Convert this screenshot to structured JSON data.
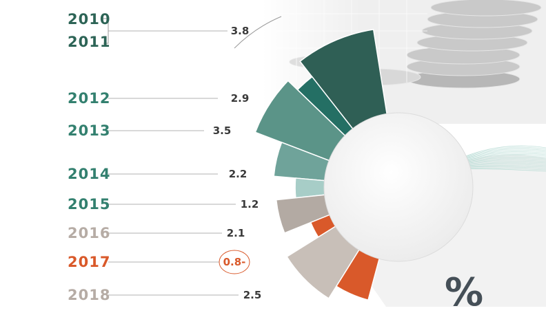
{
  "chart_data": {
    "type": "bar",
    "title": "",
    "xlabel": "",
    "ylabel": "",
    "categories": [
      "2010 2011",
      "2012",
      "2013",
      "2014",
      "2015",
      "2016",
      "2017",
      "2018"
    ],
    "category_labels": [
      [
        "2010",
        "2011"
      ],
      [
        "2012"
      ],
      [
        "2013"
      ],
      [
        "2014"
      ],
      [
        "2015"
      ],
      [
        "2016"
      ],
      [
        "2017"
      ],
      [
        "2018"
      ]
    ],
    "values": [
      3.8,
      2.9,
      3.5,
      2.2,
      1.2,
      2.1,
      -0.8,
      2.5
    ],
    "value_labels": [
      "3.8",
      "2.9",
      "3.5",
      "2.2",
      "1.2",
      "2.1",
      "0.8-",
      "2.5"
    ],
    "bar_colors": [
      "#2f5f55",
      "#246f64",
      "#5b9488",
      "#6fa39a",
      "#a7cdc7",
      "#b3aaa3",
      "#d9592a",
      "#c8bfb8"
    ],
    "label_colors": [
      "#2d6456",
      "#33806f",
      "#33806f",
      "#33806f",
      "#33806f",
      "#b6aca5",
      "#d9592a",
      "#b6aca5"
    ],
    "extra_segment_color": "#d9592a",
    "unit_symbol": "%",
    "grid": false
  },
  "colors": {
    "accent_teal": "#2f5f55",
    "accent_orange": "#d9592a",
    "muted_gray": "#b3aaa3"
  }
}
